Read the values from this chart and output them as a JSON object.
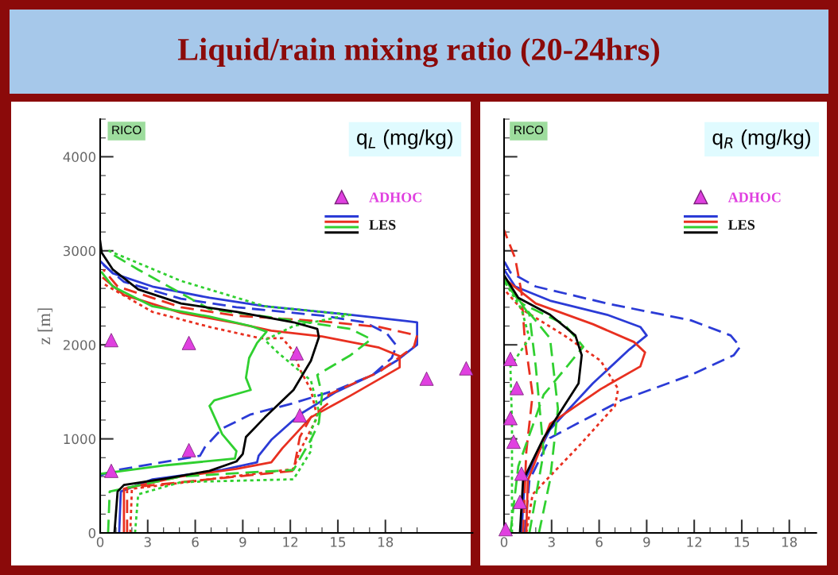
{
  "chart_data": [
    {
      "type": "line",
      "title": "Liquid/rain mixing ratio (20-24hrs)",
      "ylabel": "z [m]",
      "annotations": [
        "RICO",
        "q$_{L}$ (mg/kg)"
      ],
      "legend": "top right",
      "xlim": [
        0,
        23.5
      ],
      "ylim": [
        0,
        4400
      ],
      "xticks": [
        0,
        {
          "value": 1,
          "label": null
        },
        {
          "value": 2,
          "label": null
        },
        3,
        {
          "value": 4,
          "label": null
        },
        {
          "value": 5,
          "label": null
        },
        6,
        {
          "value": 7,
          "label": null
        },
        {
          "value": 8,
          "label": null
        },
        9,
        {
          "value": 10,
          "label": null
        },
        {
          "value": 11,
          "label": null
        },
        12,
        {
          "value": 13,
          "label": null
        },
        {
          "value": 14,
          "label": null
        },
        15,
        {
          "value": 16,
          "label": null
        },
        {
          "value": 17,
          "label": null
        },
        18,
        {
          "value": 19,
          "label": null
        },
        {
          "value": 20,
          "label": null
        }
      ],
      "yticks": [
        0,
        {
          "value": 200,
          "label": null
        },
        {
          "value": 400,
          "label": null
        },
        {
          "value": 600,
          "label": null
        },
        {
          "value": 800,
          "label": null
        },
        1000,
        {
          "value": 1200,
          "label": null
        },
        {
          "value": 1400,
          "label": null
        },
        {
          "value": 1600,
          "label": null
        },
        {
          "value": 1800,
          "label": null
        },
        2000,
        {
          "value": 2200,
          "label": null
        },
        {
          "value": 2400,
          "label": null
        },
        {
          "value": 2600,
          "label": null
        },
        {
          "value": 2800,
          "label": null
        },
        3000,
        {
          "value": 3200,
          "label": null
        },
        {
          "value": 3400,
          "label": null
        },
        {
          "value": 3600,
          "label": null
        },
        {
          "value": 3800,
          "label": null
        },
        4000,
        {
          "value": 4200,
          "label": null
        },
        {
          "value": 4400,
          "label": null
        }
      ],
      "series": [
        {
          "name": "LES",
          "color": "#2b3bd6",
          "line_style": "solid",
          "x": [
            1.2,
            1.3,
            3.3,
            7.7,
            9.9,
            10.0,
            10.8,
            12.6,
            14.9,
            17.2,
            18.7,
            20.0,
            20.0,
            15.8,
            10.4,
            6.9,
            3.3,
            0.8,
            0.0
          ],
          "values": [
            0,
            440,
            570,
            670,
            750,
            820,
            990,
            1260,
            1500,
            1680,
            1830,
            2000,
            2240,
            2320,
            2410,
            2500,
            2620,
            2760,
            2890
          ]
        },
        {
          "color": "#2b3bd6",
          "line_style": "dashed",
          "x": [
            0.0,
            0.8,
            6.3,
            6.6,
            7.7,
            9.5,
            12.2,
            14.9,
            17.2,
            18.4,
            18.7,
            18.1,
            16.7,
            14.0,
            8.6,
            5.1,
            1.5,
            0.2
          ],
          "values": [
            610,
            660,
            820,
            910,
            1110,
            1260,
            1380,
            1520,
            1680,
            1860,
            1990,
            2120,
            2240,
            2310,
            2400,
            2490,
            2670,
            2850
          ]
        },
        {
          "color": "#e83020",
          "line_style": "solid",
          "x": [
            1.5,
            1.5,
            5.1,
            8.6,
            10.8,
            11.5,
            13.3,
            15.8,
            18.9,
            18.9,
            17.6,
            14.0,
            10.8,
            8.6,
            5.1,
            1.5,
            0.2
          ],
          "values": [
            0,
            470,
            600,
            680,
            750,
            900,
            1230,
            1460,
            1760,
            1880,
            1970,
            2090,
            2150,
            2230,
            2340,
            2530,
            2710
          ]
        },
        {
          "color": "#e83020",
          "line_style": "dashed",
          "x": [
            1.7,
            1.7,
            6.9,
            12.2,
            12.6,
            13.3,
            14.4,
            14.4,
            17.6,
            19.8,
            20.0,
            17.6,
            14.0,
            8.6,
            5.1,
            1.1,
            0.2
          ],
          "values": [
            0,
            480,
            570,
            660,
            1020,
            1230,
            1380,
            1470,
            1710,
            1980,
            2100,
            2190,
            2250,
            2310,
            2400,
            2620,
            2800
          ]
        },
        {
          "color": "#e83020",
          "line_style": "dotted",
          "x": [
            1.9,
            2.0,
            6.9,
            12.2,
            12.6,
            13.7,
            13.3,
            12.6,
            12.2,
            11.5,
            10.1,
            6.9,
            3.3,
            0.2
          ],
          "values": [
            0,
            470,
            570,
            680,
            870,
            1230,
            1520,
            1740,
            1930,
            2070,
            2070,
            2190,
            2350,
            2650
          ]
        },
        {
          "color": "#30d030",
          "line_style": "solid",
          "x": [
            0.1,
            4.2,
            8.5,
            8.6,
            7.7,
            6.9,
            7.2,
            9.5,
            9.2,
            9.4,
            9.9,
            10.5,
            9.5,
            6.9,
            3.3,
            0.8,
            0.1
          ],
          "values": [
            630,
            720,
            790,
            870,
            1050,
            1350,
            1410,
            1520,
            1650,
            1860,
            2020,
            2140,
            2200,
            2300,
            2410,
            2620,
            2770
          ]
        },
        {
          "color": "#30d030",
          "line_style": "dashed",
          "x": [
            0.5,
            0.6,
            5.1,
            12.2,
            13.3,
            13.8,
            14.0,
            13.7,
            15.8,
            17.1,
            15.8,
            12.2,
            6.9,
            2.4,
            0.6
          ],
          "values": [
            0,
            440,
            600,
            670,
            990,
            1170,
            1470,
            1680,
            1890,
            2060,
            2170,
            2260,
            2380,
            2800,
            2980
          ]
        },
        {
          "color": "#30d030",
          "line_style": "dotted",
          "x": [
            2.2,
            2.4,
            5.1,
            12.2,
            13.3,
            13.3,
            13.8,
            13.3,
            11.2,
            10.4,
            12.2,
            15.8,
            10.4,
            5.1,
            0.4
          ],
          "values": [
            0,
            410,
            540,
            570,
            870,
            1080,
            1290,
            1620,
            1920,
            2050,
            2200,
            2320,
            2410,
            2680,
            3010
          ]
        },
        {
          "color": "#000000",
          "line_style": "solid",
          "x": [
            0.9,
            1.1,
            1.5,
            4.2,
            6.9,
            8.6,
            9.0,
            9.2,
            10.4,
            12.2,
            13.3,
            13.8,
            13.7,
            12.2,
            8.6,
            5.1,
            2.4,
            0.8,
            0.1,
            0.0
          ],
          "values": [
            0,
            440,
            510,
            580,
            660,
            760,
            840,
            1020,
            1230,
            1520,
            1830,
            2080,
            2170,
            2240,
            2350,
            2440,
            2590,
            2800,
            2980,
            3100
          ]
        },
        {
          "name": "ADHOC",
          "type": "scatter",
          "marker": "triangle",
          "color": "#e040e0",
          "x": [
            0.7,
            5.6,
            12.4,
            12.6,
            5.6,
            0.7,
            20.6,
            23.1
          ],
          "values": [
            2050,
            2020,
            1910,
            1250,
            880,
            660,
            1640,
            1750
          ]
        }
      ]
    },
    {
      "type": "line",
      "annotations": [
        "RICO",
        "q$_{R}$ (mg/kg)"
      ],
      "legend": "top right",
      "tick_labels": "x",
      "xlim": [
        0,
        19.7
      ],
      "ylim": [
        0,
        4400
      ],
      "xticks": [
        0,
        {
          "value": 1,
          "label": null
        },
        {
          "value": 2,
          "label": null
        },
        3,
        {
          "value": 4,
          "label": null
        },
        {
          "value": 5,
          "label": null
        },
        6,
        {
          "value": 7,
          "label": null
        },
        {
          "value": 8,
          "label": null
        },
        9,
        {
          "value": 10,
          "label": null
        },
        {
          "value": 11,
          "label": null
        },
        12,
        {
          "value": 13,
          "label": null
        },
        {
          "value": 14,
          "label": null
        },
        15,
        {
          "value": 16,
          "label": null
        },
        {
          "value": 17,
          "label": null
        },
        18,
        {
          "value": 19,
          "label": null
        }
      ],
      "yticks": [
        0,
        {
          "value": 200,
          "label": null
        },
        {
          "value": 400,
          "label": null
        },
        {
          "value": 600,
          "label": null
        },
        {
          "value": 800,
          "label": null
        },
        1000,
        {
          "value": 1200,
          "label": null
        },
        {
          "value": 1400,
          "label": null
        },
        {
          "value": 1600,
          "label": null
        },
        {
          "value": 1800,
          "label": null
        },
        2000,
        {
          "value": 2200,
          "label": null
        },
        {
          "value": 2400,
          "label": null
        },
        {
          "value": 2600,
          "label": null
        },
        {
          "value": 2800,
          "label": null
        },
        3000,
        {
          "value": 3200,
          "label": null
        },
        {
          "value": 3400,
          "label": null
        },
        {
          "value": 3600,
          "label": null
        },
        {
          "value": 3800,
          "label": null
        },
        4000,
        {
          "value": 4200,
          "label": null
        },
        {
          "value": 4400,
          "label": null
        }
      ],
      "series": [
        {
          "name": "LES",
          "color": "#2b3bd6",
          "line_style": "dashed",
          "x": [
            1.3,
            1.6,
            2.9,
            7.4,
            11.8,
            14.5,
            14.9,
            14.3,
            11.8,
            6.5,
            2.0,
            0.4,
            0.0
          ],
          "values": [
            0,
            560,
            1010,
            1410,
            1680,
            1890,
            1980,
            2100,
            2260,
            2440,
            2620,
            2770,
            2890
          ]
        },
        {
          "color": "#2b3bd6",
          "line_style": "solid",
          "x": [
            1.1,
            1.3,
            2.9,
            5.6,
            7.9,
            9.0,
            8.6,
            6.5,
            2.9,
            0.7,
            0.0
          ],
          "values": [
            0,
            560,
            1100,
            1590,
            1950,
            2100,
            2190,
            2320,
            2470,
            2620,
            2800
          ]
        },
        {
          "color": "#e83020",
          "line_style": "solid",
          "x": [
            1.4,
            1.5,
            2.9,
            6.1,
            8.6,
            8.9,
            8.2,
            5.6,
            2.0,
            0.2
          ],
          "values": [
            0,
            560,
            1160,
            1530,
            1770,
            1920,
            2030,
            2220,
            2440,
            2680
          ]
        },
        {
          "color": "#e83020",
          "line_style": "dotted",
          "x": [
            1.4,
            1.8,
            4.7,
            7.0,
            7.2,
            6.1,
            3.8,
            1.1,
            0.0
          ],
          "values": [
            0,
            410,
            920,
            1350,
            1530,
            1830,
            2100,
            2380,
            2590
          ]
        },
        {
          "color": "#e83020",
          "line_style": "dashed",
          "x": [
            1.2,
            1.4,
            1.8,
            1.3,
            1.1,
            0.7,
            0.0
          ],
          "values": [
            0,
            860,
            1470,
            2070,
            2560,
            2920,
            3220
          ]
        },
        {
          "color": "#30d030",
          "line_style": "dashed",
          "x": [
            2.2,
            2.9,
            3.4,
            2.9,
            1.1,
            0.0
          ],
          "values": [
            0,
            560,
            1320,
            2070,
            2440,
            2710
          ]
        },
        {
          "color": "#30d030",
          "line_style": "dashed",
          "x": [
            0.4,
            0.9,
            2.5,
            5.0,
            3.8,
            1.1
          ],
          "values": [
            0,
            710,
            1470,
            1980,
            2220,
            2440
          ]
        },
        {
          "color": "#30d030",
          "line_style": "dashed",
          "x": [
            1.6,
            2.5,
            2.0,
            1.6,
            0.0
          ],
          "values": [
            0,
            860,
            1770,
            2320,
            2680
          ]
        },
        {
          "color": "#30d030",
          "line_style": "dotted",
          "x": [
            0.5,
            0.5,
            0.4,
            1.6,
            1.1,
            0.0
          ],
          "values": [
            0,
            1160,
            1770,
            2070,
            2380,
            2680
          ]
        },
        {
          "color": "#000000",
          "line_style": "solid",
          "x": [
            1.0,
            1.2,
            2.5,
            4.7,
            4.9,
            4.5,
            2.9,
            0.9,
            0.0
          ],
          "values": [
            0,
            560,
            1010,
            1590,
            1890,
            2100,
            2320,
            2500,
            2740
          ]
        },
        {
          "name": "ADHOC",
          "type": "scatter",
          "marker": "triangle",
          "color": "#e040e0",
          "x": [
            0.4,
            0.8,
            0.4,
            0.6,
            1.1,
            1.0,
            0.1
          ],
          "values": [
            1850,
            1540,
            1220,
            970,
            630,
            330,
            40
          ]
        }
      ]
    }
  ]
}
